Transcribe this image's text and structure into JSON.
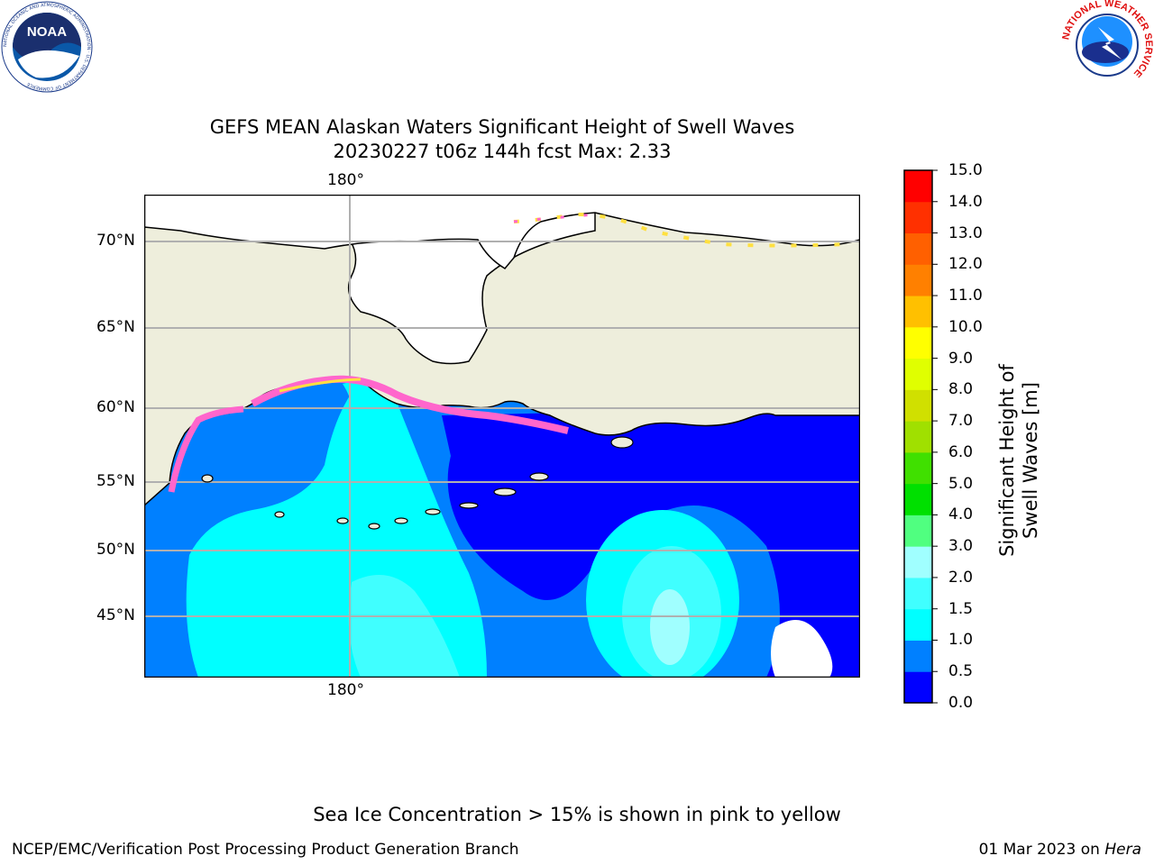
{
  "title_line1": "GEFS MEAN Alaskan Waters Significant Height of Swell Waves",
  "title_line2": "20230227 t06z 144h fcst   Max: 2.33",
  "map": {
    "lon_label_top": "180°",
    "lon_label_bottom": "180°",
    "lat_labels": [
      "70°N",
      "65°N",
      "60°N",
      "55°N",
      "50°N",
      "45°N"
    ],
    "colors": {
      "land": "#eeeedc",
      "ocean_0_05": "#0000ff",
      "ocean_05_10": "#0080ff",
      "ocean_10_15": "#00ffff",
      "ocean_15_20": "#40ffff",
      "ocean_20_30": "#a0ffff",
      "ice_pink": "#ff66cc",
      "ice_yellow": "#ffe040"
    }
  },
  "colorbar": {
    "ticks": [
      "15.0",
      "14.0",
      "13.0",
      "12.0",
      "11.0",
      "10.0",
      "9.0",
      "8.0",
      "7.0",
      "6.0",
      "5.0",
      "4.0",
      "3.0",
      "2.0",
      "1.5",
      "1.0",
      "0.5",
      "0.0"
    ],
    "colors": [
      "#0000ff",
      "#0080ff",
      "#00ffff",
      "#40ffff",
      "#a0ffff",
      "#50ff80",
      "#00e000",
      "#40e000",
      "#a0e000",
      "#d0e000",
      "#e0ff00",
      "#ffff00",
      "#ffc000",
      "#ff8000",
      "#ff6000",
      "#ff3000",
      "#ff0000"
    ],
    "label": "Significant Height of Swell Waves [m]"
  },
  "footer": {
    "note": "Sea Ice Concentration > 15% is shown in pink to yellow",
    "credit": "NCEP/EMC/Verification Post Processing Product Generation Branch",
    "date": "01 Mar 2023 on ",
    "machine": "Hera"
  },
  "logos": {
    "noaa_text": "NOAA",
    "noaa_ring": "NATIONAL OCEANIC AND ATMOSPHERIC ADMINISTRATION · U.S. DEPARTMENT OF COMMERCE",
    "nws_ring": "NATIONAL WEATHER SERVICE"
  }
}
